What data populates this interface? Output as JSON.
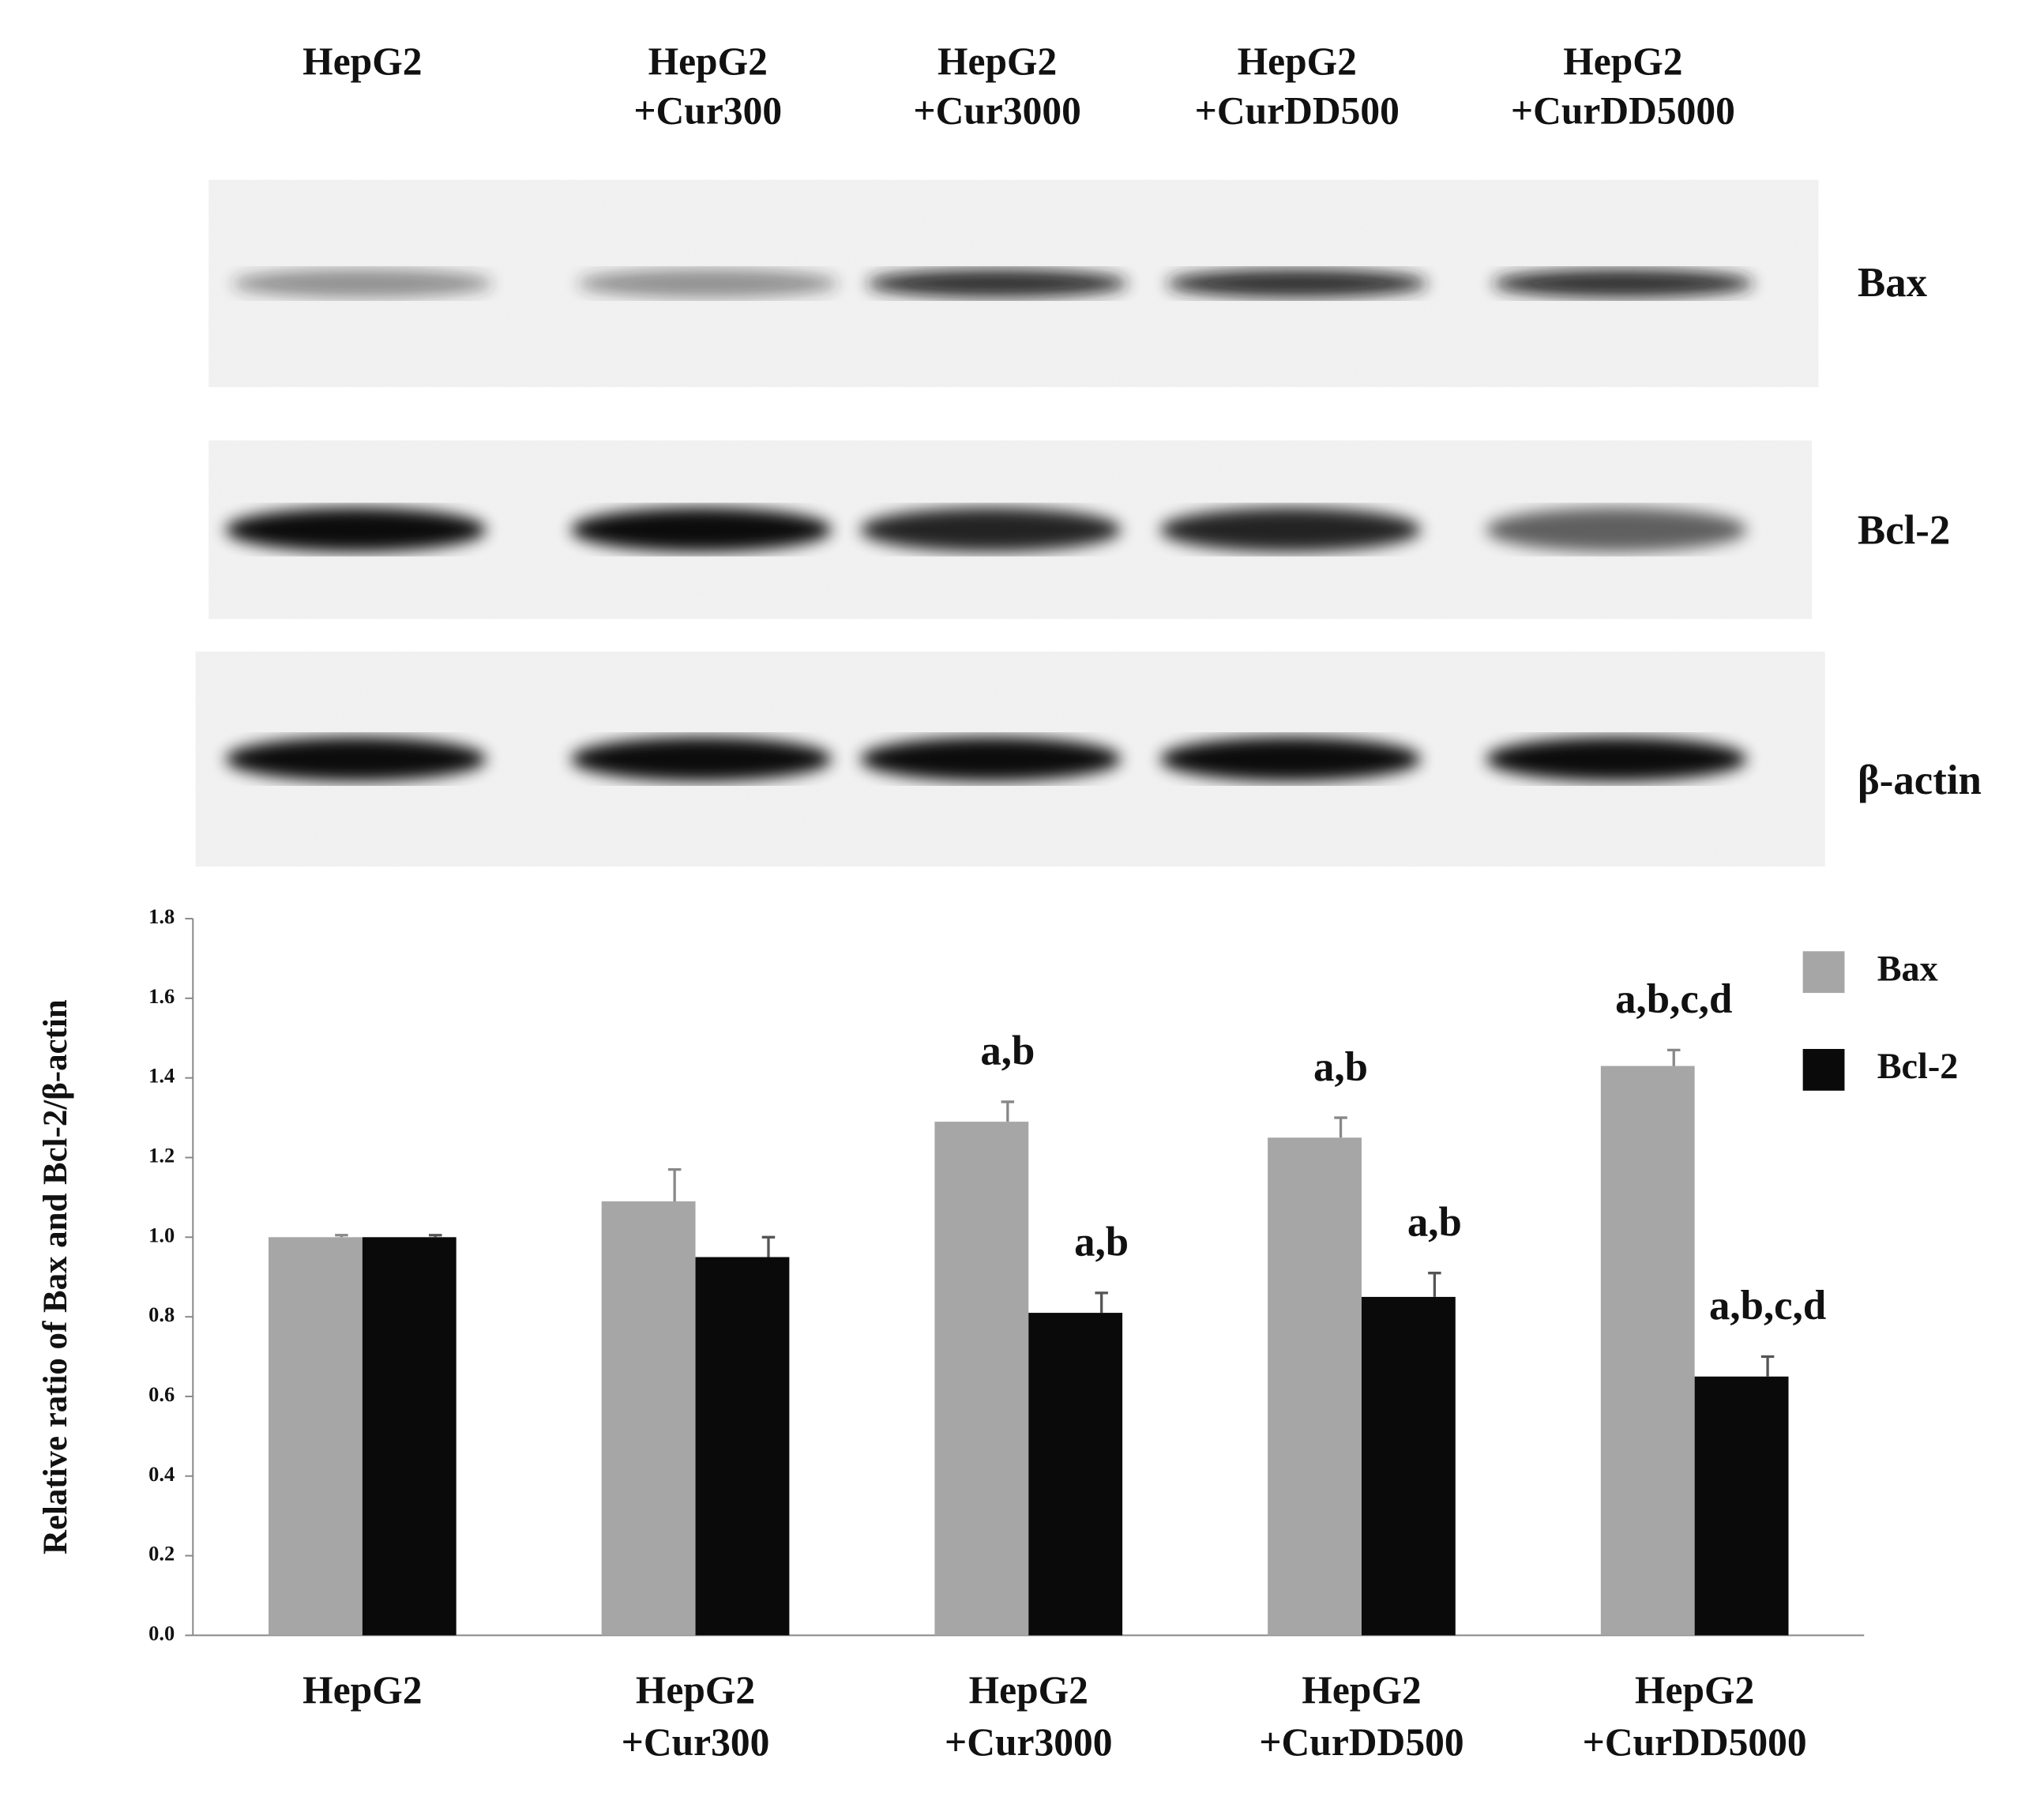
{
  "blot": {
    "lanes": [
      [
        "HepG2"
      ],
      [
        "HepG2",
        "+Cur300"
      ],
      [
        "HepG2",
        "+Cur3000"
      ],
      [
        "HepG2",
        "+CurDD500"
      ],
      [
        "HepG2",
        "+CurDD5000"
      ]
    ],
    "rows": [
      "Bax",
      "Bcl-2",
      "β-actin"
    ]
  },
  "chart_data": {
    "type": "bar",
    "y_label": "Relative ratio of Bax and Bcl-2/β-actin",
    "categories": [
      [
        "HepG2"
      ],
      [
        "HepG2",
        "+Cur300"
      ],
      [
        "HepG2",
        "+Cur3000"
      ],
      [
        "HepG2",
        "+CurDD500"
      ],
      [
        "HepG2",
        "+CurDD5000"
      ]
    ],
    "series": [
      {
        "name": "Bax",
        "color": "#a6a6a6",
        "values": [
          1.0,
          1.09,
          1.29,
          1.25,
          1.43
        ],
        "errors": [
          0.005,
          0.08,
          0.05,
          0.05,
          0.04
        ],
        "annotations": [
          null,
          null,
          "a,b",
          "a,b",
          "a,b,c,d"
        ]
      },
      {
        "name": "Bcl-2",
        "color": "#0a0a0a",
        "values": [
          1.0,
          0.95,
          0.81,
          0.85,
          0.65
        ],
        "errors": [
          0.005,
          0.05,
          0.05,
          0.06,
          0.05
        ],
        "annotations": [
          null,
          null,
          "a,b",
          "a,b",
          "a,b,c,d"
        ]
      }
    ],
    "ylim": [
      0,
      1.8
    ],
    "yticks": [
      {
        "value": 0,
        "label": "0.0"
      },
      {
        "value": 0.2,
        "label": "0.2"
      },
      {
        "value": 0.4,
        "label": "0.4"
      },
      {
        "value": 0.6,
        "label": "0.6"
      },
      {
        "value": 0.8,
        "label": "0.8"
      },
      {
        "value": 1.0,
        "label": "1.0"
      },
      {
        "value": 1.2,
        "label": "1.2"
      },
      {
        "value": 1.4,
        "label": "1.4"
      },
      {
        "value": 1.6,
        "label": "1.6"
      },
      {
        "value": 1.8,
        "label": "1.8"
      }
    ],
    "legend": "top-right"
  }
}
